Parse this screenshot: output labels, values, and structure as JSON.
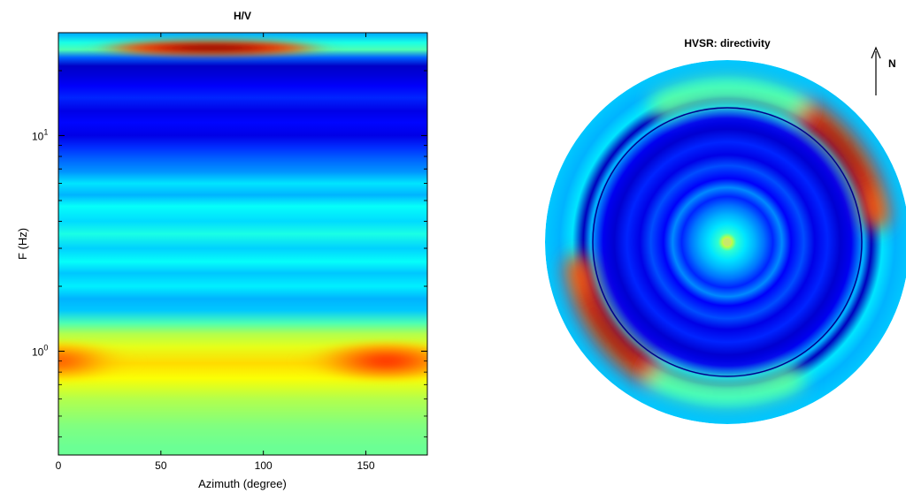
{
  "chart_data": [
    {
      "type": "heatmap",
      "title": "H/V",
      "xlabel": "Azimuth (degree)",
      "ylabel": "F (Hz)",
      "xlim": [
        0,
        180
      ],
      "ylim": [
        0.33,
        30
      ],
      "yscale": "log",
      "xticks": [
        0,
        50,
        100,
        150
      ],
      "xtick_labels": [
        "0",
        "50",
        "100",
        "150"
      ],
      "yticks": [
        1,
        10
      ],
      "ytick_labels": [
        {
          "base": "10",
          "exp": "0"
        },
        {
          "base": "10",
          "exp": "1"
        }
      ],
      "colormap": "jet",
      "bands": [
        {
          "f": 0.36,
          "v": 0.48
        },
        {
          "f": 0.45,
          "v": 0.5
        },
        {
          "f": 0.6,
          "v": 0.55
        },
        {
          "f": 0.75,
          "v": 0.62
        },
        {
          "f": 0.88,
          "v": 0.66
        },
        {
          "f": 1.05,
          "v": 0.6
        },
        {
          "f": 1.2,
          "v": 0.55
        },
        {
          "f": 1.35,
          "v": 0.45
        },
        {
          "f": 1.55,
          "v": 0.32
        },
        {
          "f": 1.75,
          "v": 0.3
        },
        {
          "f": 2.0,
          "v": 0.36
        },
        {
          "f": 2.3,
          "v": 0.32
        },
        {
          "f": 2.6,
          "v": 0.38
        },
        {
          "f": 3.0,
          "v": 0.33
        },
        {
          "f": 3.5,
          "v": 0.4
        },
        {
          "f": 4.0,
          "v": 0.34
        },
        {
          "f": 4.7,
          "v": 0.38
        },
        {
          "f": 5.3,
          "v": 0.3
        },
        {
          "f": 6.0,
          "v": 0.35
        },
        {
          "f": 6.8,
          "v": 0.27
        },
        {
          "f": 7.8,
          "v": 0.22
        },
        {
          "f": 8.8,
          "v": 0.17
        },
        {
          "f": 10.0,
          "v": 0.1
        },
        {
          "f": 11.5,
          "v": 0.13
        },
        {
          "f": 13.0,
          "v": 0.1
        },
        {
          "f": 15.0,
          "v": 0.16
        },
        {
          "f": 17.0,
          "v": 0.12
        },
        {
          "f": 19.0,
          "v": 0.09
        },
        {
          "f": 21.0,
          "v": 0.07
        },
        {
          "f": 23.0,
          "v": 0.22
        },
        {
          "f": 25.0,
          "v": 0.45
        },
        {
          "f": 27.0,
          "v": 0.4
        },
        {
          "f": 29.5,
          "v": 0.3
        }
      ],
      "hotspots": [
        {
          "azimuth": 75,
          "f": 25.5,
          "peak": 1.0,
          "az_width": 35,
          "f_width": 0.03
        },
        {
          "azimuth": 0,
          "f": 0.9,
          "peak": 0.78,
          "az_width": 18,
          "f_width": 0.07
        },
        {
          "azimuth": 160,
          "f": 0.9,
          "peak": 0.82,
          "az_width": 22,
          "f_width": 0.07
        }
      ]
    },
    {
      "type": "heatmap",
      "title": "HVSR: directivity",
      "projection": "polar",
      "north_label": "N",
      "colormap": "jet",
      "rings": [
        {
          "r": 0.0,
          "v": 0.5
        },
        {
          "r": 0.02,
          "v": 0.6
        },
        {
          "r": 0.05,
          "v": 0.42
        },
        {
          "r": 0.1,
          "v": 0.35
        },
        {
          "r": 0.15,
          "v": 0.3
        },
        {
          "r": 0.2,
          "v": 0.24
        },
        {
          "r": 0.25,
          "v": 0.16
        },
        {
          "r": 0.3,
          "v": 0.26
        },
        {
          "r": 0.35,
          "v": 0.12
        },
        {
          "r": 0.42,
          "v": 0.2
        },
        {
          "r": 0.48,
          "v": 0.1
        },
        {
          "r": 0.55,
          "v": 0.16
        },
        {
          "r": 0.62,
          "v": 0.08
        },
        {
          "r": 0.68,
          "v": 0.11
        },
        {
          "r": 0.75,
          "v": 0.3
        },
        {
          "r": 0.79,
          "v": 0.06
        },
        {
          "r": 0.85,
          "v": 0.35
        },
        {
          "r": 0.92,
          "v": 0.3
        },
        {
          "r": 1.0,
          "v": 0.32
        }
      ],
      "hotspots": [
        {
          "azimuth": 50,
          "r": 0.83,
          "peak": 1.0,
          "az_width": 30
        },
        {
          "azimuth": 230,
          "r": 0.83,
          "peak": 1.0,
          "az_width": 30
        },
        {
          "azimuth": 180,
          "r": 0.83,
          "peak": 0.45,
          "az_width": 25
        },
        {
          "azimuth": 0,
          "r": 0.83,
          "peak": 0.45,
          "az_width": 25
        }
      ]
    }
  ]
}
